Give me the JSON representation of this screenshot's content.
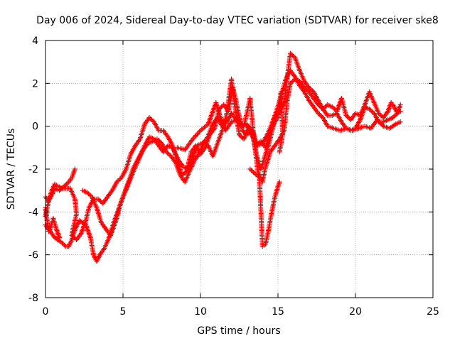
{
  "chart_data": {
    "type": "scatter",
    "title": "Day 006 of 2024, Sidereal Day-to-day VTEC variation (SDTVAR) for receiver ske8",
    "xlabel": "GPS time / hours",
    "ylabel": "SDTVAR / TECUs",
    "xlim": [
      0,
      25
    ],
    "ylim": [
      -8,
      4
    ],
    "x_ticks": [
      "0",
      "5",
      "10",
      "15",
      "20",
      "25"
    ],
    "y_ticks": [
      "-8",
      "-6",
      "-4",
      "-2",
      "0",
      "2",
      "4"
    ],
    "grid": true,
    "marker": "+",
    "color": "#ff0000",
    "series": [
      {
        "points": [
          [
            0.0,
            -3.3
          ],
          [
            0.2,
            -3.5
          ],
          [
            0.4,
            -3.2
          ],
          [
            0.6,
            -2.9
          ],
          [
            0.9,
            -3.0
          ],
          [
            1.2,
            -2.8
          ],
          [
            1.5,
            -2.6
          ],
          [
            1.7,
            -2.4
          ],
          [
            1.9,
            -2.0
          ]
        ]
      },
      {
        "points": [
          [
            0.0,
            -4.6
          ],
          [
            0.3,
            -4.9
          ],
          [
            0.6,
            -5.2
          ],
          [
            1.0,
            -5.4
          ],
          [
            1.3,
            -5.6
          ],
          [
            1.5,
            -5.6
          ],
          [
            1.7,
            -5.3
          ],
          [
            1.9,
            -4.8
          ],
          [
            2.2,
            -4.4
          ],
          [
            2.6,
            -4.6
          ],
          [
            2.9,
            -5.2
          ],
          [
            3.1,
            -6.0
          ],
          [
            3.3,
            -6.3
          ],
          [
            3.5,
            -6.0
          ],
          [
            3.8,
            -5.7
          ],
          [
            4.1,
            -5.2
          ],
          [
            4.4,
            -4.5
          ],
          [
            4.7,
            -3.9
          ],
          [
            5.0,
            -3.3
          ],
          [
            5.4,
            -2.6
          ],
          [
            5.8,
            -1.9
          ],
          [
            6.1,
            -1.4
          ],
          [
            6.4,
            -0.9
          ],
          [
            6.7,
            -0.5
          ],
          [
            7.0,
            -0.6
          ],
          [
            7.3,
            -0.9
          ],
          [
            7.6,
            -1.2
          ],
          [
            7.9,
            -0.9
          ],
          [
            8.2,
            -1.0
          ],
          [
            8.6,
            -1.6
          ],
          [
            8.9,
            -1.9
          ],
          [
            9.2,
            -2.0
          ],
          [
            9.5,
            -1.5
          ],
          [
            9.8,
            -0.9
          ],
          [
            10.1,
            -0.8
          ],
          [
            10.4,
            -0.6
          ],
          [
            10.8,
            0.1
          ],
          [
            11.1,
            0.4
          ],
          [
            11.4,
            0.0
          ],
          [
            11.7,
            0.2
          ],
          [
            12.0,
            0.6
          ],
          [
            12.3,
            0.3
          ],
          [
            12.7,
            0.0
          ],
          [
            13.0,
            0.1
          ],
          [
            13.3,
            -0.4
          ],
          [
            13.7,
            -0.9
          ],
          [
            14.0,
            -0.8
          ],
          [
            14.3,
            -0.4
          ],
          [
            14.6,
            0.1
          ],
          [
            14.9,
            0.7
          ],
          [
            15.2,
            1.4
          ],
          [
            15.5,
            2.2
          ],
          [
            15.8,
            2.6
          ],
          [
            16.1,
            2.3
          ],
          [
            16.4,
            1.9
          ],
          [
            16.7,
            1.6
          ],
          [
            17.0,
            1.2
          ],
          [
            17.3,
            0.9
          ],
          [
            17.6,
            0.6
          ],
          [
            17.9,
            0.4
          ],
          [
            18.2,
            0.0
          ],
          [
            18.6,
            -0.1
          ],
          [
            19.0,
            -0.2
          ],
          [
            19.4,
            -0.1
          ],
          [
            19.8,
            -0.2
          ],
          [
            20.2,
            -0.1
          ],
          [
            20.6,
            0.0
          ],
          [
            21.0,
            -0.1
          ],
          [
            21.4,
            0.3
          ],
          [
            21.8,
            0.0
          ],
          [
            22.2,
            -0.1
          ],
          [
            22.6,
            0.1
          ],
          [
            22.9,
            0.2
          ]
        ]
      },
      {
        "points": [
          [
            0.0,
            -4.2
          ],
          [
            0.2,
            -3.5
          ],
          [
            0.4,
            -3.0
          ],
          [
            0.6,
            -2.7
          ],
          [
            0.8,
            -2.8
          ],
          [
            1.1,
            -2.9
          ],
          [
            1.3,
            -2.9
          ],
          [
            1.6,
            -2.9
          ],
          [
            1.9,
            -3.4
          ],
          [
            2.0,
            -4.1
          ],
          [
            1.8,
            -4.7
          ],
          [
            1.7,
            -5.1
          ],
          [
            2.0,
            -5.3
          ],
          [
            2.3,
            -5.0
          ],
          [
            2.6,
            -4.4
          ],
          [
            2.8,
            -3.8
          ],
          [
            3.1,
            -3.4
          ],
          [
            3.4,
            -3.4
          ],
          [
            3.7,
            -3.6
          ],
          [
            4.0,
            -3.3
          ],
          [
            4.3,
            -3.0
          ],
          [
            4.6,
            -2.6
          ],
          [
            4.9,
            -2.4
          ],
          [
            5.2,
            -2.0
          ],
          [
            5.5,
            -1.3
          ],
          [
            5.8,
            -0.9
          ],
          [
            6.1,
            -0.6
          ],
          [
            6.4,
            0.1
          ],
          [
            6.7,
            0.4
          ],
          [
            7.0,
            0.2
          ],
          [
            7.3,
            -0.2
          ],
          [
            7.6,
            -0.2
          ],
          [
            7.9,
            -0.5
          ],
          [
            8.2,
            -0.9
          ],
          [
            8.5,
            -1.6
          ],
          [
            8.8,
            -2.3
          ],
          [
            9.1,
            -2.1
          ],
          [
            9.4,
            -1.2
          ],
          [
            9.7,
            -0.9
          ],
          [
            10.0,
            -1.3
          ],
          [
            10.3,
            -1.0
          ],
          [
            10.6,
            -0.4
          ],
          [
            10.9,
            -0.1
          ],
          [
            11.2,
            0.8
          ],
          [
            11.5,
            1.0
          ],
          [
            11.8,
            0.7
          ],
          [
            12.1,
            1.8
          ],
          [
            12.4,
            0.8
          ],
          [
            12.7,
            -0.2
          ],
          [
            13.0,
            -0.4
          ],
          [
            13.3,
            -0.2
          ],
          [
            13.6,
            -1.3
          ],
          [
            13.9,
            -2.0
          ],
          [
            14.2,
            -1.3
          ],
          [
            14.5,
            -0.6
          ],
          [
            14.8,
            0.4
          ],
          [
            15.1,
            0.7
          ],
          [
            15.4,
            1.1
          ],
          [
            15.6,
            2.3
          ],
          [
            15.8,
            3.4
          ],
          [
            16.1,
            3.2
          ],
          [
            16.4,
            2.6
          ],
          [
            16.7,
            2.1
          ],
          [
            17.0,
            1.8
          ],
          [
            17.3,
            1.6
          ],
          [
            17.6,
            1.2
          ],
          [
            17.9,
            0.8
          ],
          [
            18.2,
            0.5
          ],
          [
            18.5,
            0.5
          ],
          [
            18.8,
            0.6
          ],
          [
            19.1,
            0.2
          ],
          [
            19.4,
            -0.1
          ],
          [
            19.7,
            -0.2
          ],
          [
            20.0,
            -0.1
          ],
          [
            20.3,
            0.3
          ],
          [
            20.6,
            0.9
          ],
          [
            20.9,
            0.8
          ],
          [
            21.2,
            0.6
          ],
          [
            21.5,
            0.2
          ],
          [
            21.8,
            0.2
          ],
          [
            22.1,
            0.3
          ],
          [
            22.4,
            0.4
          ],
          [
            22.7,
            0.6
          ],
          [
            22.9,
            0.7
          ]
        ]
      },
      {
        "points": [
          [
            2.4,
            -3.0
          ],
          [
            2.7,
            -3.1
          ],
          [
            3.0,
            -3.3
          ],
          [
            3.3,
            -3.8
          ],
          [
            3.6,
            -4.5
          ],
          [
            3.9,
            -4.8
          ],
          [
            4.2,
            -5.1
          ],
          [
            4.4,
            -4.7
          ],
          [
            4.6,
            -4.3
          ],
          [
            4.8,
            -3.7
          ],
          [
            5.1,
            -3.1
          ],
          [
            5.4,
            -2.5
          ],
          [
            5.7,
            -1.9
          ],
          [
            6.0,
            -1.5
          ],
          [
            6.3,
            -1.1
          ],
          [
            6.6,
            -0.8
          ],
          [
            6.9,
            -0.7
          ],
          [
            7.2,
            -0.6
          ],
          [
            7.5,
            -0.8
          ],
          [
            7.8,
            -1.2
          ],
          [
            8.1,
            -1.4
          ],
          [
            8.4,
            -1.7
          ],
          [
            8.7,
            -2.3
          ],
          [
            9.0,
            -2.6
          ],
          [
            9.3,
            -2.1
          ],
          [
            9.6,
            -1.6
          ],
          [
            9.9,
            -1.3
          ],
          [
            10.2,
            -0.8
          ],
          [
            10.5,
            -0.9
          ],
          [
            10.8,
            -1.4
          ],
          [
            11.1,
            -0.8
          ],
          [
            11.4,
            -0.2
          ],
          [
            11.7,
            0.6
          ],
          [
            12.0,
            2.2
          ],
          [
            12.2,
            1.0
          ],
          [
            12.5,
            -0.4
          ],
          [
            12.8,
            -0.6
          ],
          [
            13.1,
            0.0
          ],
          [
            13.4,
            -0.3
          ],
          [
            13.7,
            -2.1
          ],
          [
            14.0,
            -2.6
          ],
          [
            14.2,
            -1.9
          ],
          [
            14.5,
            -1.2
          ],
          [
            14.8,
            -0.9
          ],
          [
            15.1,
            -0.6
          ],
          [
            15.4,
            -0.2
          ],
          [
            15.6,
            1.2
          ],
          [
            15.8,
            2.0
          ],
          [
            16.1,
            2.2
          ],
          [
            16.4,
            2.1
          ],
          [
            16.7,
            1.8
          ],
          [
            17.0,
            1.6
          ],
          [
            17.3,
            1.3
          ],
          [
            17.6,
            1.0
          ],
          [
            17.9,
            0.8
          ],
          [
            18.2,
            1.0
          ],
          [
            18.5,
            0.9
          ],
          [
            18.8,
            0.7
          ],
          [
            19.1,
            1.3
          ],
          [
            19.4,
            0.5
          ],
          [
            19.7,
            0.3
          ],
          [
            20.0,
            0.6
          ],
          [
            20.3,
            0.5
          ],
          [
            20.6,
            1.0
          ],
          [
            20.9,
            1.6
          ],
          [
            21.2,
            1.1
          ],
          [
            21.5,
            0.6
          ],
          [
            21.8,
            0.4
          ],
          [
            22.1,
            0.7
          ],
          [
            22.3,
            1.1
          ],
          [
            22.5,
            0.9
          ],
          [
            22.7,
            0.6
          ],
          [
            22.9,
            1.0
          ]
        ]
      },
      {
        "points": [
          [
            8.5,
            -1.0
          ],
          [
            9.0,
            -1.1
          ],
          [
            9.5,
            -0.6
          ],
          [
            10.0,
            -0.2
          ],
          [
            10.5,
            0.1
          ],
          [
            11.0,
            1.1
          ],
          [
            11.3,
            0.4
          ],
          [
            11.6,
            -0.2
          ],
          [
            12.0,
            0.2
          ],
          [
            12.4,
            0.3
          ],
          [
            12.8,
            0.0
          ],
          [
            13.2,
            1.3
          ],
          [
            13.4,
            -0.2
          ],
          [
            13.6,
            -0.9
          ],
          [
            13.9,
            -0.7
          ],
          [
            14.2,
            -1.0
          ],
          [
            14.4,
            -0.5
          ],
          [
            14.6,
            -0.1
          ],
          [
            14.8,
            0.2
          ],
          [
            15.0,
            0.4
          ],
          [
            15.2,
            1.6
          ],
          [
            15.3,
            -0.4
          ],
          [
            15.1,
            -1.2
          ]
        ]
      },
      {
        "points": [
          [
            13.2,
            -2.0
          ],
          [
            13.5,
            -2.2
          ],
          [
            13.8,
            -2.4
          ],
          [
            14.0,
            -5.6
          ],
          [
            14.2,
            -5.5
          ],
          [
            14.4,
            -4.8
          ],
          [
            14.6,
            -4.0
          ],
          [
            14.8,
            -3.3
          ],
          [
            15.0,
            -2.8
          ],
          [
            15.1,
            -2.6
          ]
        ]
      },
      {
        "points": [
          [
            0.0,
            -3.8
          ],
          [
            0.1,
            -4.4
          ],
          [
            0.2,
            -4.9
          ],
          [
            0.3,
            -4.8
          ],
          [
            0.5,
            -4.3
          ],
          [
            0.7,
            -4.8
          ],
          [
            0.9,
            -5.2
          ]
        ]
      }
    ]
  }
}
